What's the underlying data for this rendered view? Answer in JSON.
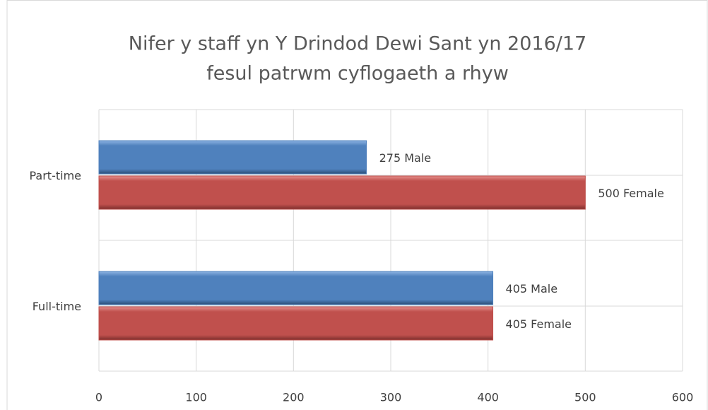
{
  "chart_data": {
    "type": "bar",
    "orientation": "horizontal",
    "title": [
      "Nifer y staff yn Y Drindod Dewi Sant yn 2016/17",
      "fesul patrwm cyflogaeth a rhyw"
    ],
    "categories": [
      "Part-time",
      "Full-time"
    ],
    "series": [
      {
        "name": "Male",
        "color": "#4f81bd",
        "values": [
          275,
          405
        ],
        "value_labels": [
          "275 Male",
          "405 Male"
        ]
      },
      {
        "name": "Female",
        "color": "#c0504d",
        "values": [
          500,
          405
        ],
        "value_labels": [
          "500 Female",
          "405 Female"
        ]
      }
    ],
    "xlim": [
      0,
      600
    ],
    "xticks": [
      0,
      100,
      200,
      300,
      400,
      500,
      600
    ],
    "grid": true
  }
}
